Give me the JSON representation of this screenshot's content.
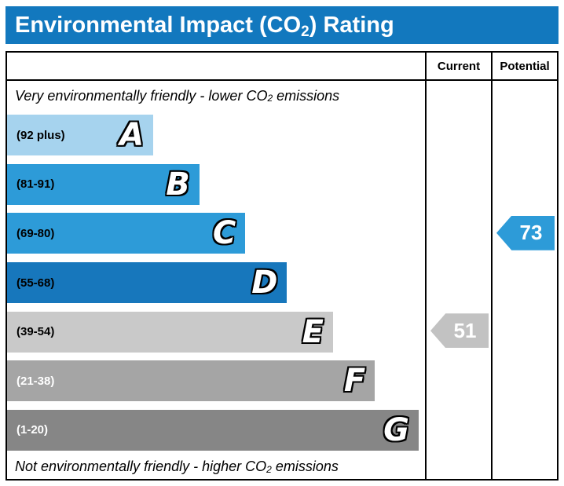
{
  "title": {
    "prefix": "Environmental Impact (CO",
    "sub": "2",
    "suffix": ") Rating"
  },
  "header": {
    "current": "Current",
    "potential": "Potential"
  },
  "top_note": {
    "pre": "Very environmentally friendly - lower CO",
    "sub": "2",
    "post": " emissions"
  },
  "bottom_note": {
    "pre": "Not environmentally friendly - higher CO",
    "sub": "2",
    "post": " emissions"
  },
  "chart_data": {
    "type": "bar",
    "title": "Environmental Impact (CO2) Rating",
    "bands": [
      {
        "letter": "A",
        "range": "(92 plus)",
        "color": "#a6d3ee",
        "width_pct": 35,
        "label_color": "#000000"
      },
      {
        "letter": "B",
        "range": "(81-91)",
        "color": "#2d9bd8",
        "width_pct": 46,
        "label_color": "#000000"
      },
      {
        "letter": "C",
        "range": "(69-80)",
        "color": "#2d9bd8",
        "width_pct": 57,
        "label_color": "#000000"
      },
      {
        "letter": "D",
        "range": "(55-68)",
        "color": "#1777bc",
        "width_pct": 67,
        "label_color": "#000000"
      },
      {
        "letter": "E",
        "range": "(39-54)",
        "color": "#c9c9c9",
        "width_pct": 78,
        "label_color": "#000000"
      },
      {
        "letter": "F",
        "range": "(21-38)",
        "color": "#a5a5a5",
        "width_pct": 88,
        "label_color": "#ffffff"
      },
      {
        "letter": "G",
        "range": "(1-20)",
        "color": "#868686",
        "width_pct": 98.5,
        "label_color": "#ffffff"
      }
    ],
    "current": {
      "value": 51,
      "band": "E",
      "color": "#c2c2c2"
    },
    "potential": {
      "value": 73,
      "band": "C",
      "color": "#2d9bd8"
    }
  }
}
